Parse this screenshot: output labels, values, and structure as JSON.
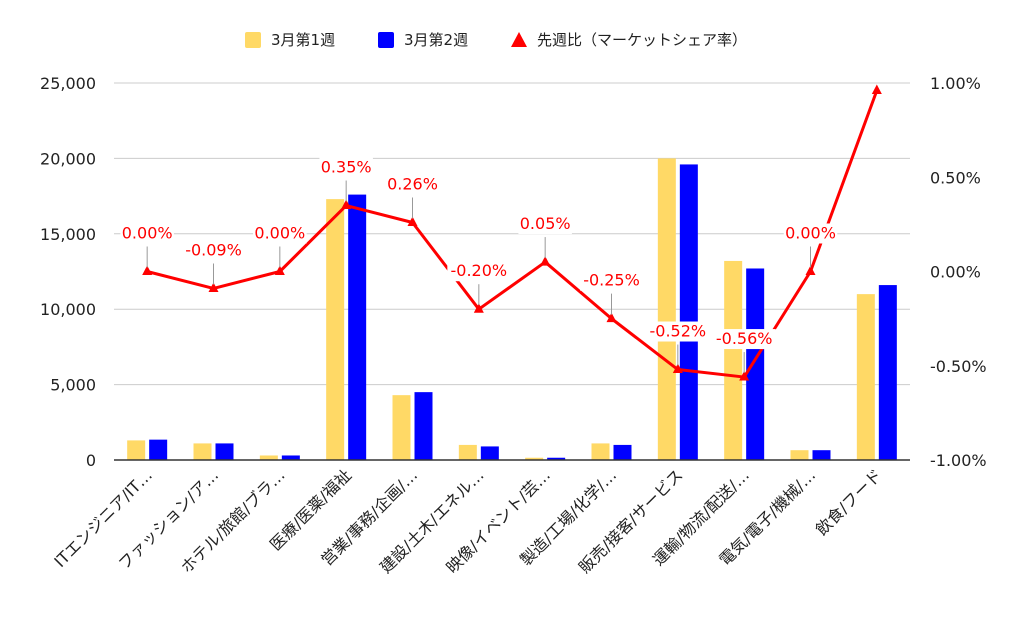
{
  "chart_data": {
    "type": "bar",
    "categories": [
      "ITエンジニア/IT…",
      "ファッション/ア…",
      "ホテル/旅館/ブラ…",
      "医療/医薬/福祉",
      "営業/事務/企画/…",
      "建設/土木/エネル…",
      "映像/イベント/芸…",
      "製造/工場/化学/…",
      "販売/接客/サービス",
      "運輸/物流/配送/…",
      "電気/電子/機械/…",
      "飲食/フード"
    ],
    "series": [
      {
        "name": "3月第1週",
        "type": "bar",
        "axis": "left",
        "color": "#FFD966",
        "values": [
          1300,
          1100,
          300,
          17300,
          4300,
          1000,
          150,
          1100,
          20000,
          13200,
          650,
          11000
        ]
      },
      {
        "name": "3月第2週",
        "type": "bar",
        "axis": "left",
        "color": "#0000FF",
        "values": [
          1350,
          1100,
          300,
          17600,
          4500,
          900,
          150,
          1000,
          19600,
          12700,
          650,
          11600
        ]
      },
      {
        "name": "先週比（マーケットシェア率）",
        "type": "line",
        "axis": "right",
        "color": "#FF0000",
        "values": [
          0.0,
          -0.09,
          0.0,
          0.35,
          0.26,
          -0.2,
          0.05,
          -0.25,
          -0.52,
          -0.56,
          0.0,
          0.96
        ],
        "labels": [
          "0.00%",
          "-0.09%",
          "0.00%",
          "0.35%",
          "0.26%",
          "-0.20%",
          "0.05%",
          "-0.25%",
          "-0.52%",
          "-0.56%",
          "0.00%",
          ""
        ]
      }
    ],
    "y_left": {
      "min": 0,
      "max": 25000,
      "ticks": [
        "0",
        "5,000",
        "10,000",
        "15,000",
        "20,000",
        "25,000"
      ]
    },
    "y_right": {
      "min": -1.0,
      "max": 1.0,
      "ticks": [
        "-1.00%",
        "-0.50%",
        "0.00%",
        "0.50%",
        "1.00%"
      ]
    },
    "grid": true,
    "legend_position": "top"
  }
}
